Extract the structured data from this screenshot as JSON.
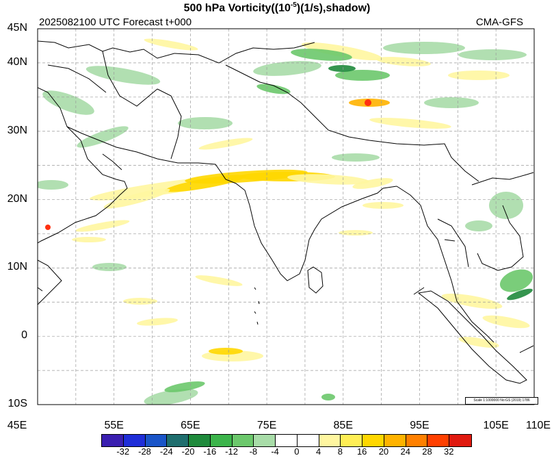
{
  "title": {
    "prefix": "500 hPa Vorticity((10",
    "exponent": "-5",
    "suffix": ")(1/s),shadow)"
  },
  "subtitle": {
    "left": "2025082100 UTC Forecast t+000",
    "right": "CMA-GFS"
  },
  "scale_note": "Scale 1:1000000 No:GS (2019) 1786",
  "axes": {
    "lat_labels": [
      "45N",
      "40N",
      "30N",
      "20N",
      "10N",
      "0",
      "10S"
    ],
    "lat_values": [
      45,
      40,
      30,
      20,
      10,
      0,
      -10
    ],
    "lon_labels": [
      "45E",
      "55E",
      "65E",
      "75E",
      "85E",
      "95E",
      "105E",
      "110E"
    ],
    "lon_values": [
      45,
      55,
      65,
      75,
      85,
      95,
      105,
      110
    ],
    "lat_range": [
      -10,
      45
    ],
    "lon_range": [
      45,
      110
    ]
  },
  "colorbar": {
    "labels": [
      "-32",
      "-28",
      "-24",
      "-20",
      "-16",
      "-12",
      "-8",
      "-4",
      "0",
      "4",
      "8",
      "16",
      "20",
      "24",
      "28",
      "32"
    ],
    "colors": [
      "#3a1fb0",
      "#1f2ed8",
      "#1a55c8",
      "#1f6e6e",
      "#1f8a3c",
      "#3cb44b",
      "#6cc86c",
      "#a8dca8",
      "#ffffff",
      "#ffffff",
      "#fff6a0",
      "#ffee55",
      "#ffd700",
      "#ffb300",
      "#ff8000",
      "#ff4000",
      "#e01a10"
    ]
  },
  "map": {
    "land_color": "#ffffff",
    "coast_color": "#000000",
    "grid_style": "dashed",
    "shading_colors": {
      "neg_light": "#a8dca8",
      "neg_mid": "#6cc86c",
      "neg_dark": "#1f8a3c",
      "pos_light": "#fff6a0",
      "pos_mid": "#ffd700",
      "pos_high": "#ffb300",
      "pos_max": "#ff3010"
    }
  }
}
